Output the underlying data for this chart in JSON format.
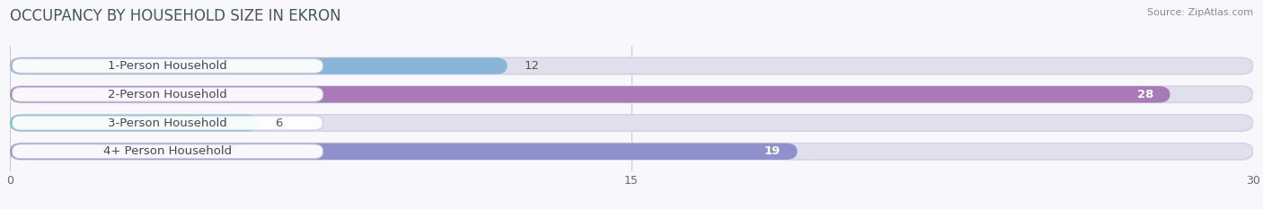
{
  "title": "OCCUPANCY BY HOUSEHOLD SIZE IN EKRON",
  "source": "Source: ZipAtlas.com",
  "categories": [
    "1-Person Household",
    "2-Person Household",
    "3-Person Household",
    "4+ Person Household"
  ],
  "values": [
    12,
    28,
    6,
    19
  ],
  "bar_colors": [
    "#8ab4d8",
    "#a87ab8",
    "#5ec8c4",
    "#9090cc"
  ],
  "label_bg_color": "#f0f0f8",
  "bar_bg_color": "#e0e0ec",
  "xlim": [
    0,
    30
  ],
  "xticks": [
    0,
    15,
    30
  ],
  "label_fontsize": 9.5,
  "title_fontsize": 12,
  "value_color_inside": "#ffffff",
  "value_color_outside": "#555555",
  "bar_height": 0.58,
  "background_color": "#f8f8fc",
  "text_color": "#444455"
}
